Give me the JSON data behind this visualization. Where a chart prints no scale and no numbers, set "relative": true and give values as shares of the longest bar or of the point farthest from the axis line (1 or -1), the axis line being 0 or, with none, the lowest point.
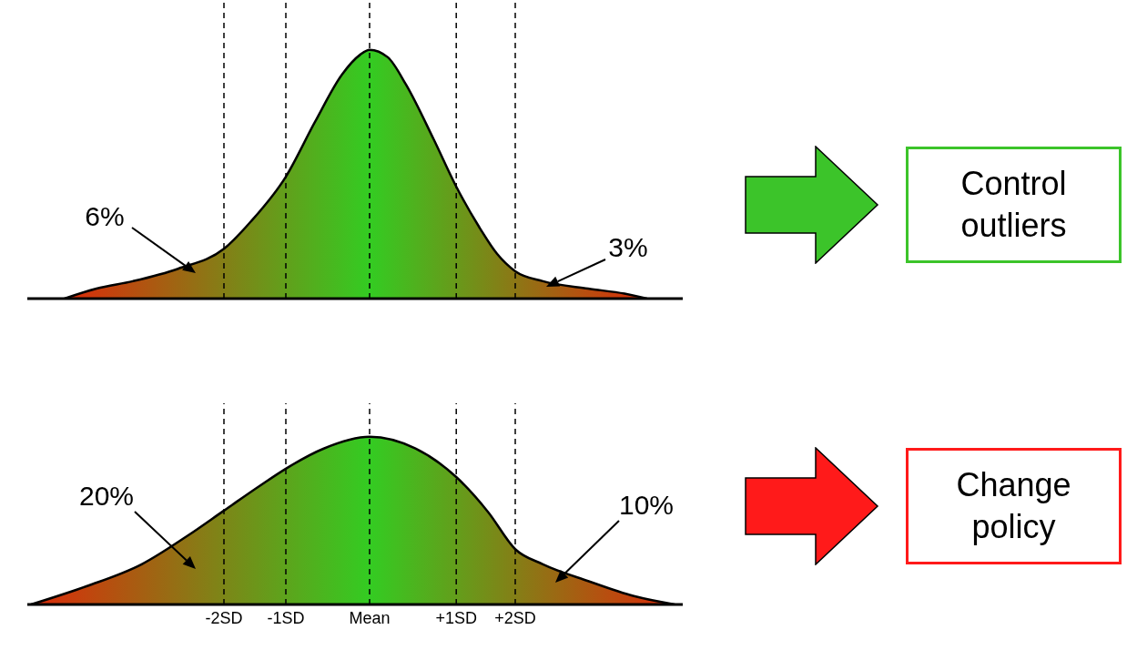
{
  "chart_data": [
    {
      "type": "area",
      "relative": true,
      "x": [
        -4.19,
        -3.75,
        -3.25,
        -2.63,
        -2,
        -1.63,
        -1.15,
        -0.75,
        -0.38,
        -0.13,
        0,
        0.25,
        0.5,
        0.88,
        1.19,
        1.5,
        1.75,
        2,
        2.38,
        3,
        3.5,
        3.81
      ],
      "series": [
        {
          "color": "#33cc22",
          "values": [
            0,
            0.04,
            0.07,
            0.12,
            0.2,
            0.31,
            0.49,
            0.71,
            0.9,
            0.98,
            1,
            0.97,
            0.86,
            0.64,
            0.45,
            0.29,
            0.18,
            0.11,
            0.07,
            0.04,
            0.02,
            0
          ]
        }
      ],
      "xlim": [
        -4.7,
        4.3
      ],
      "tick_labels": false,
      "ref_lines": [
        {
          "axis": "x",
          "value": -2,
          "color": "#000000",
          "line_style": "dashed"
        },
        {
          "axis": "x",
          "value": -1.15,
          "color": "#000000",
          "line_style": "dashed"
        },
        {
          "axis": "x",
          "value": 0,
          "color": "#000000",
          "line_style": "dashed"
        },
        {
          "axis": "x",
          "value": 1.19,
          "color": "#000000",
          "line_style": "dashed"
        },
        {
          "axis": "x",
          "value": 2,
          "color": "#000000",
          "line_style": "dashed"
        }
      ],
      "annotations": [
        "6%",
        "3%",
        "Control outliers"
      ]
    },
    {
      "type": "area",
      "relative": true,
      "x": [
        -4.65,
        -3.88,
        -3.13,
        -2.5,
        -2,
        -1.5,
        -1.15,
        -0.63,
        0,
        0.63,
        1.19,
        1.63,
        2,
        2.38,
        3,
        3.63,
        4.19
      ],
      "series": [
        {
          "color": "#33cc22",
          "values": [
            0,
            0.11,
            0.24,
            0.41,
            0.56,
            0.71,
            0.81,
            0.93,
            1,
            0.93,
            0.76,
            0.55,
            0.33,
            0.24,
            0.14,
            0.05,
            0
          ]
        }
      ],
      "xlim": [
        -4.7,
        4.3
      ],
      "xticks": [
        {
          "value": -2,
          "label": "-2SD"
        },
        {
          "value": -1.15,
          "label": "-1SD"
        },
        {
          "value": 0,
          "label": "Mean"
        },
        {
          "value": 1.19,
          "label": "+1SD"
        },
        {
          "value": 2,
          "label": "+2SD"
        }
      ],
      "tick_labels": "x",
      "ref_lines": [
        {
          "axis": "x",
          "value": -2,
          "color": "#000000",
          "line_style": "dashed"
        },
        {
          "axis": "x",
          "value": -1.15,
          "color": "#000000",
          "line_style": "dashed"
        },
        {
          "axis": "x",
          "value": 0,
          "color": "#000000",
          "line_style": "dashed"
        },
        {
          "axis": "x",
          "value": 1.19,
          "color": "#000000",
          "line_style": "dashed"
        },
        {
          "axis": "x",
          "value": 2,
          "color": "#000000",
          "line_style": "dashed"
        }
      ],
      "annotations": [
        "20%",
        "10%",
        "Change policy"
      ]
    }
  ]
}
